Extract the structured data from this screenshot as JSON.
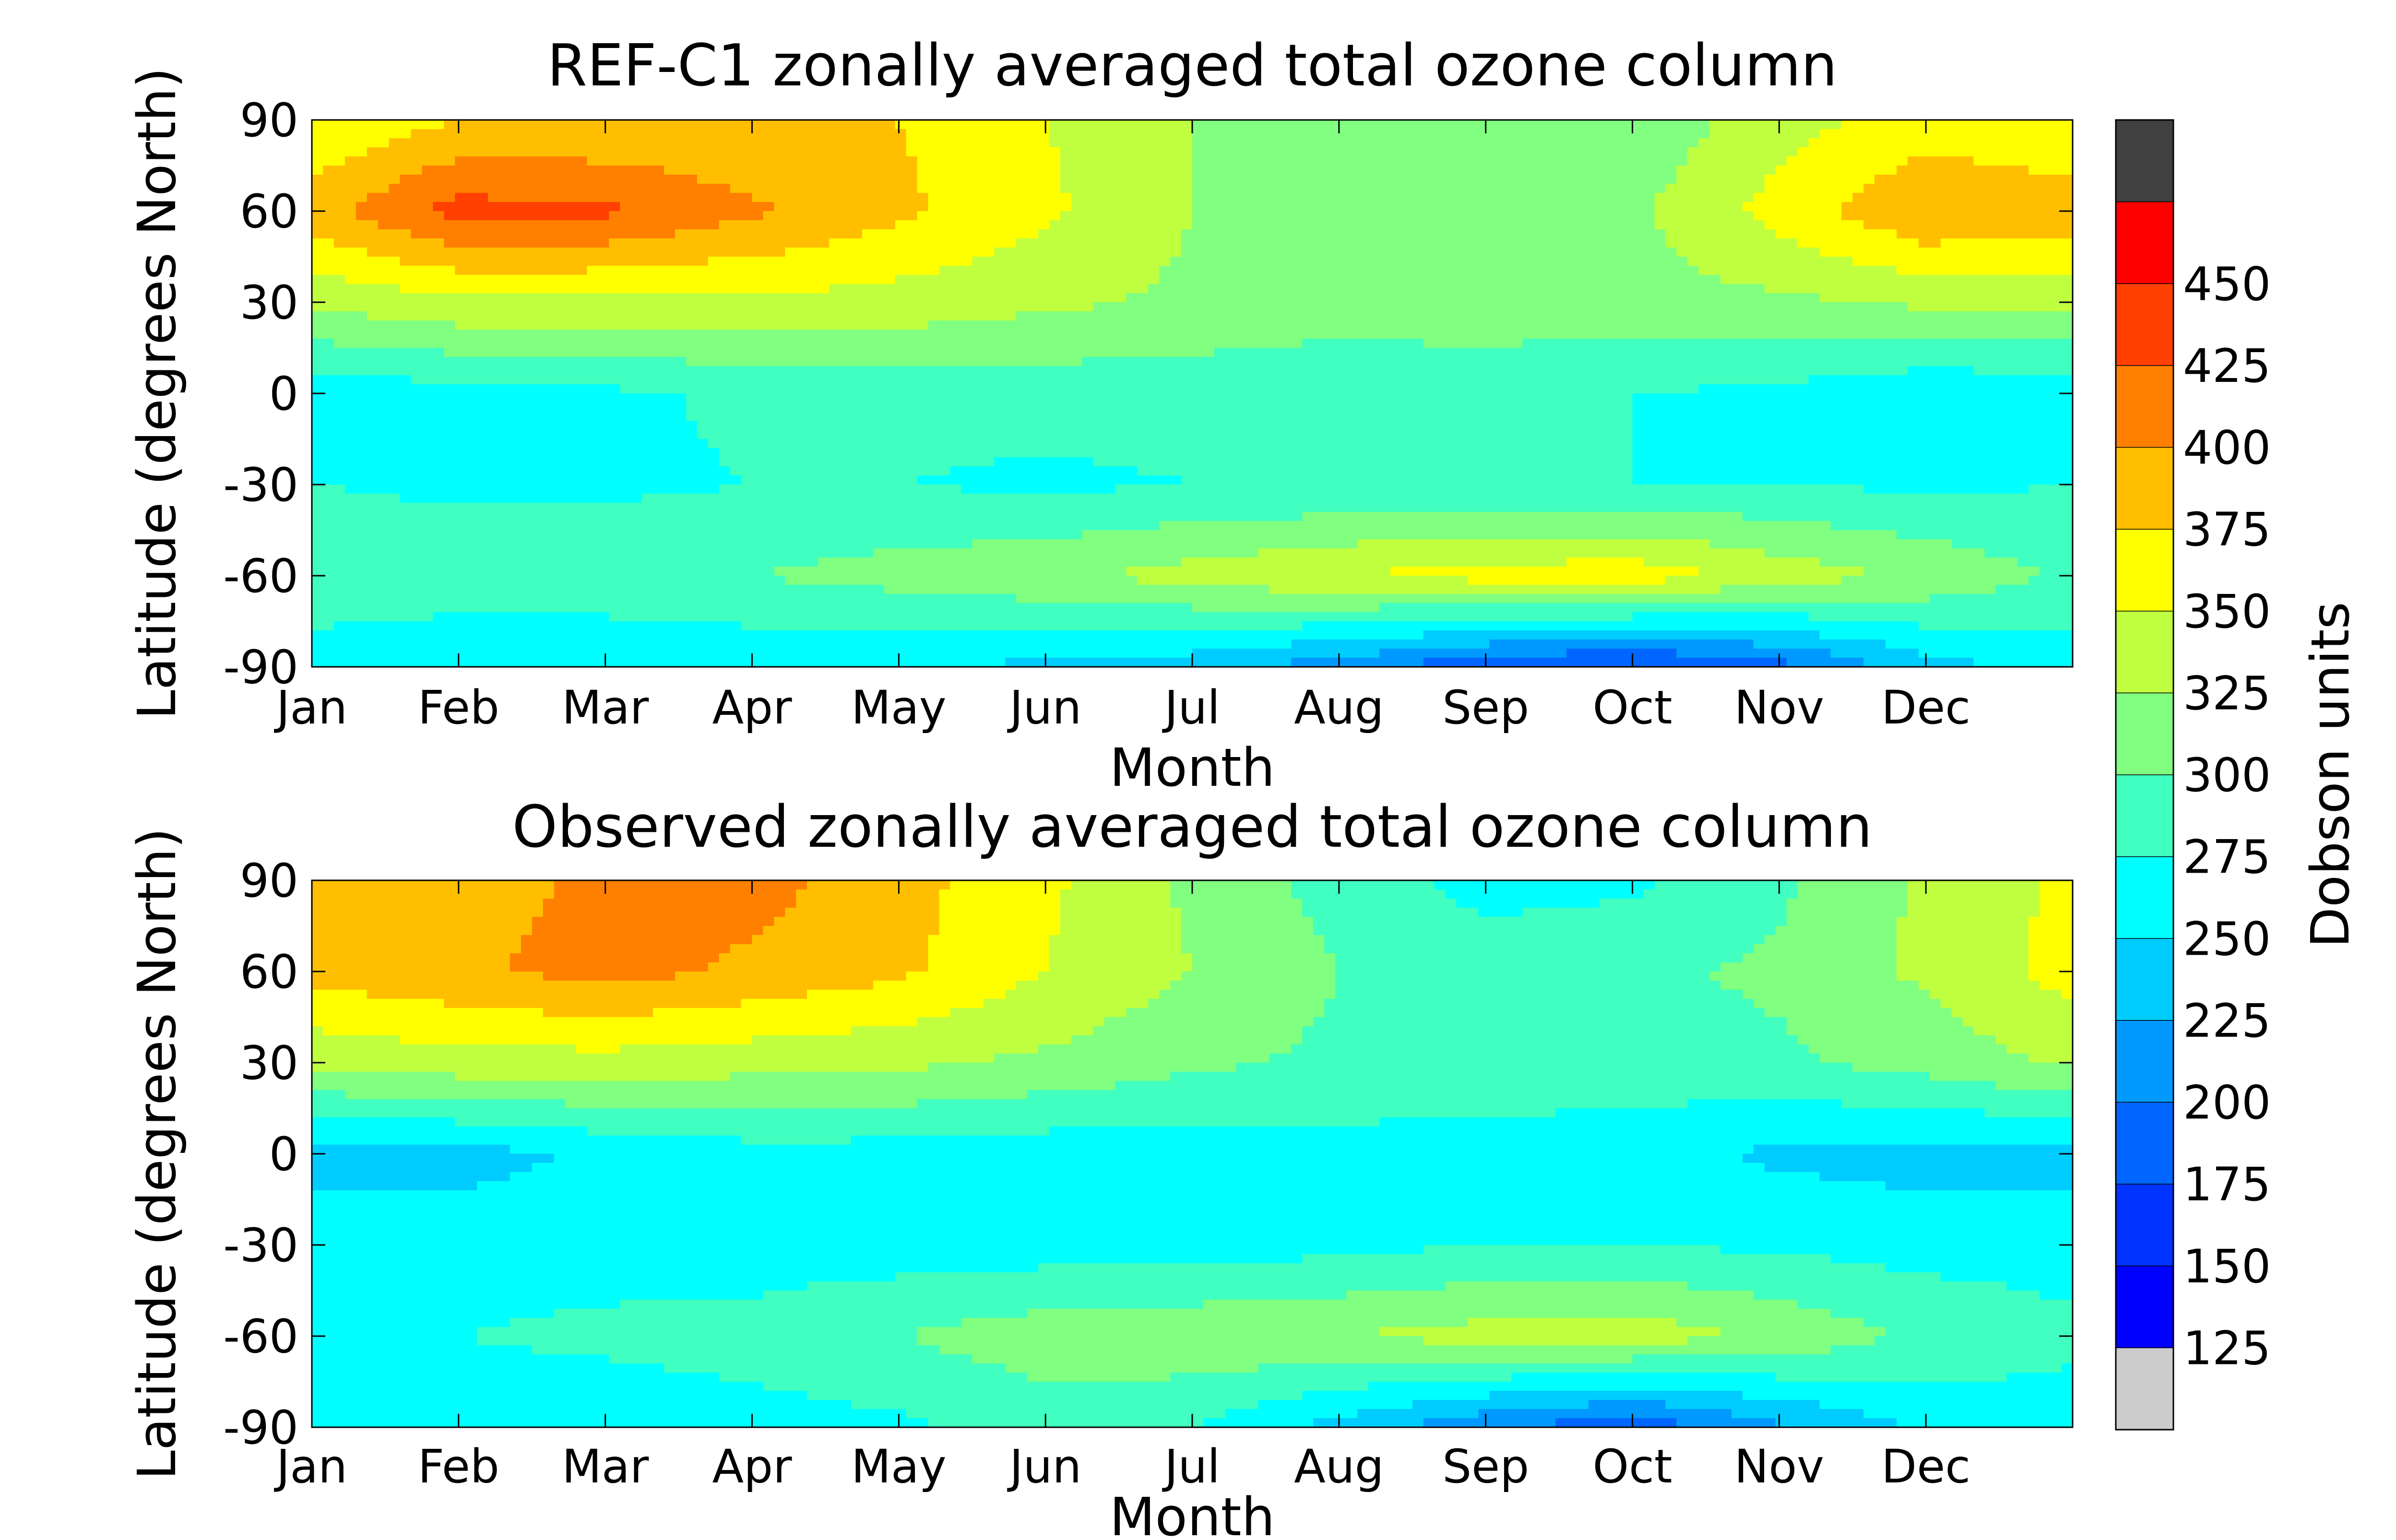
{
  "chart_data": {
    "type": "heatmap",
    "months": [
      "Jan",
      "Feb",
      "Mar",
      "Apr",
      "May",
      "Jun",
      "Jul",
      "Aug",
      "Sep",
      "Oct",
      "Nov",
      "Dec"
    ],
    "latitudes": [
      90,
      60,
      30,
      0,
      -30,
      -60,
      -90
    ],
    "colorbar": {
      "label": "Dobson units",
      "levels": [
        125,
        150,
        175,
        200,
        225,
        250,
        275,
        300,
        325,
        350,
        375,
        400,
        425,
        450
      ],
      "colors": [
        "#cccccc",
        "#0000ff",
        "#0033ff",
        "#0066ff",
        "#0099ff",
        "#00ccff",
        "#00ffff",
        "#40ffc0",
        "#80ff80",
        "#c0ff40",
        "#ffff00",
        "#ffbf00",
        "#ff8000",
        "#ff4000",
        "#ff0000",
        "#404040"
      ]
    },
    "panels": [
      {
        "title": "REF-C1 zonally averaged total ozone column",
        "xlabel": "Month",
        "ylabel": "Latitude (degrees North)",
        "z": [
          [
            350,
            375,
            375,
            375,
            375,
            350,
            325,
            305,
            300,
            305,
            340,
            360,
            350
          ],
          [
            390,
            435,
            430,
            405,
            380,
            355,
            325,
            315,
            310,
            320,
            360,
            400,
            390
          ],
          [
            330,
            345,
            345,
            345,
            340,
            330,
            320,
            310,
            310,
            315,
            320,
            330,
            330
          ],
          [
            260,
            265,
            270,
            280,
            285,
            285,
            285,
            285,
            290,
            275,
            270,
            255,
            260
          ],
          [
            275,
            270,
            270,
            275,
            275,
            270,
            275,
            275,
            280,
            275,
            275,
            270,
            275
          ],
          [
            295,
            290,
            295,
            300,
            310,
            320,
            335,
            350,
            360,
            365,
            340,
            320,
            295
          ],
          [
            260,
            255,
            250,
            255,
            250,
            245,
            235,
            210,
            180,
            165,
            190,
            240,
            260
          ]
        ]
      },
      {
        "title": "Observed zonally averaged total ozone column",
        "xlabel": "Month",
        "ylabel": "Latitude (degrees North)",
        "z": [
          [
            380,
            390,
            405,
            410,
            385,
            355,
            320,
            290,
            265,
            270,
            295,
            330,
            355
          ],
          [
            385,
            395,
            410,
            395,
            380,
            350,
            325,
            300,
            290,
            295,
            305,
            330,
            360
          ],
          [
            330,
            340,
            340,
            335,
            330,
            320,
            305,
            295,
            290,
            290,
            295,
            310,
            330
          ],
          [
            240,
            240,
            255,
            265,
            265,
            260,
            262,
            265,
            265,
            260,
            245,
            240,
            240
          ],
          [
            265,
            265,
            265,
            262,
            262,
            262,
            262,
            268,
            275,
            275,
            270,
            265,
            265
          ],
          [
            275,
            275,
            280,
            285,
            300,
            315,
            320,
            325,
            335,
            340,
            320,
            295,
            280
          ],
          [
            265,
            260,
            260,
            265,
            270,
            285,
            275,
            240,
            205,
            180,
            220,
            255,
            265
          ]
        ]
      }
    ]
  }
}
